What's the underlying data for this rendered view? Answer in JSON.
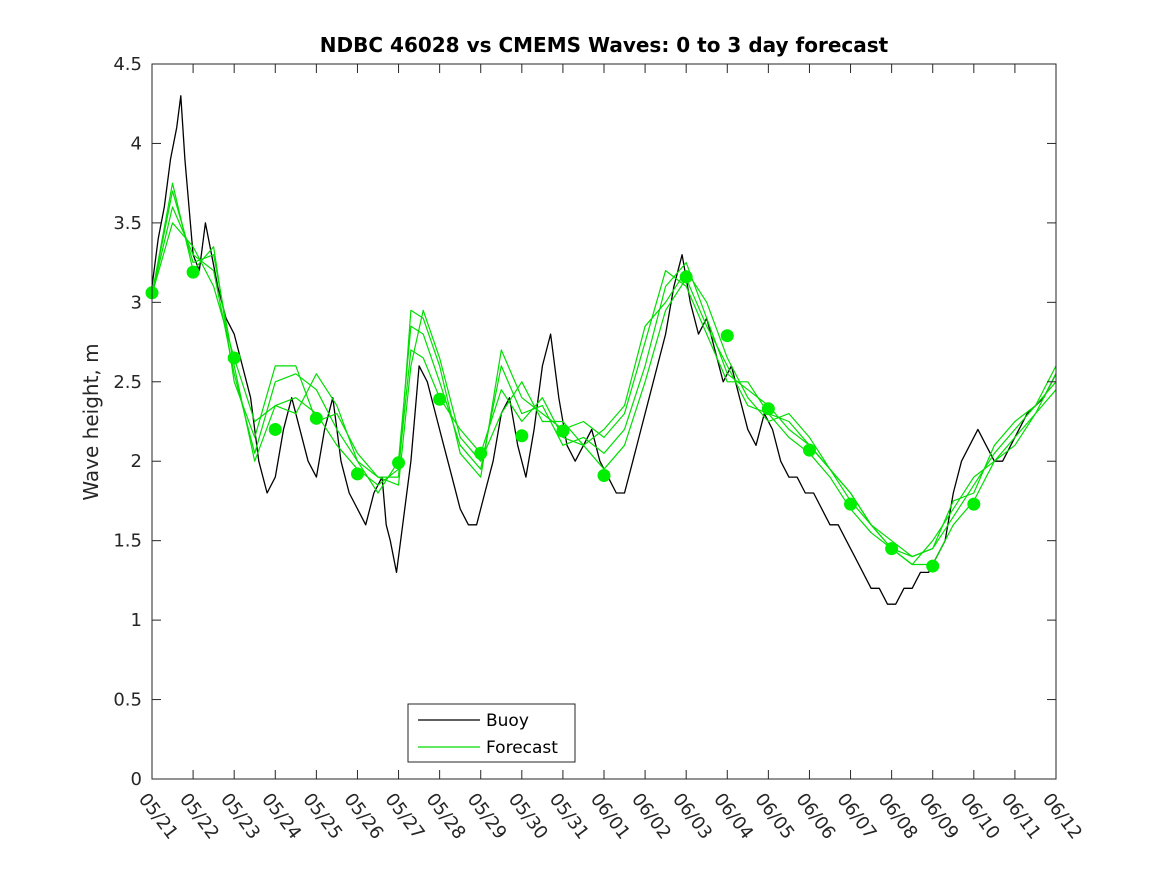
{
  "chart_data": {
    "type": "line",
    "title": "NDBC 46028 vs CMEMS Waves: 0 to 3 day forecast",
    "xlabel": "",
    "ylabel": "Wave height, m",
    "ylim": [
      0,
      4.5
    ],
    "yticks": [
      0,
      0.5,
      1,
      1.5,
      2,
      2.5,
      3,
      3.5,
      4,
      4.5
    ],
    "ytick_labels": [
      "0",
      "0.5",
      "1",
      "1.5",
      "2",
      "2.5",
      "3",
      "3.5",
      "4",
      "4.5"
    ],
    "x_axis_unit": "day",
    "xlim": [
      0,
      22
    ],
    "xticks": [
      0,
      1,
      2,
      3,
      4,
      5,
      6,
      7,
      8,
      9,
      10,
      11,
      12,
      13,
      14,
      15,
      16,
      17,
      18,
      19,
      20,
      21,
      22
    ],
    "xtick_labels": [
      "05/21",
      "05/22",
      "05/23",
      "05/24",
      "05/25",
      "05/26",
      "05/27",
      "05/28",
      "05/29",
      "05/30",
      "05/31",
      "06/01",
      "06/02",
      "06/03",
      "06/04",
      "06/05",
      "06/06",
      "06/07",
      "06/08",
      "06/09",
      "06/10",
      "06/11",
      "06/12"
    ],
    "grid": false,
    "legend": {
      "location": "bottom-center",
      "entries": [
        {
          "label": "Buoy",
          "color": "#000000"
        },
        {
          "label": "Forecast",
          "color": "#00dd00"
        }
      ]
    },
    "colors": {
      "buoy": "#000000",
      "forecast": "#00dd00",
      "marker": "#00ee00"
    },
    "series": [
      {
        "name": "Buoy",
        "style": "line",
        "x": [
          0,
          0.15,
          0.3,
          0.45,
          0.6,
          0.7,
          0.8,
          0.9,
          1.0,
          1.15,
          1.3,
          1.45,
          1.6,
          1.8,
          2.0,
          2.2,
          2.4,
          2.5,
          2.6,
          2.8,
          3.0,
          3.2,
          3.4,
          3.6,
          3.8,
          4.0,
          4.2,
          4.4,
          4.6,
          4.8,
          5.0,
          5.2,
          5.4,
          5.6,
          5.7,
          5.8,
          5.95,
          6.1,
          6.3,
          6.5,
          6.7,
          6.9,
          7.1,
          7.3,
          7.5,
          7.7,
          7.9,
          8.1,
          8.3,
          8.5,
          8.7,
          8.9,
          9.1,
          9.3,
          9.5,
          9.7,
          9.9,
          10.1,
          10.3,
          10.5,
          10.7,
          10.9,
          11.1,
          11.3,
          11.5,
          11.7,
          11.9,
          12.1,
          12.3,
          12.5,
          12.7,
          12.9,
          13.1,
          13.3,
          13.5,
          13.7,
          13.9,
          14.1,
          14.3,
          14.5,
          14.7,
          14.9,
          15.1,
          15.3,
          15.5,
          15.7,
          15.9,
          16.1,
          16.3,
          16.5,
          16.7,
          16.9,
          17.1,
          17.3,
          17.5,
          17.7,
          17.9,
          18.1,
          18.3,
          18.5,
          18.7,
          18.9,
          19.1,
          19.3,
          19.5,
          19.7,
          19.9,
          20.1,
          20.3,
          20.5,
          20.7,
          20.9,
          21.1,
          21.3,
          21.5,
          21.7,
          21.9,
          22.0
        ],
        "y": [
          3.1,
          3.4,
          3.6,
          3.9,
          4.1,
          4.3,
          3.9,
          3.6,
          3.3,
          3.2,
          3.5,
          3.3,
          3.1,
          2.9,
          2.8,
          2.6,
          2.4,
          2.2,
          2.0,
          1.8,
          1.9,
          2.2,
          2.4,
          2.2,
          2.0,
          1.9,
          2.2,
          2.4,
          2.0,
          1.8,
          1.7,
          1.6,
          1.8,
          1.9,
          1.6,
          1.5,
          1.3,
          1.6,
          2.0,
          2.6,
          2.5,
          2.3,
          2.1,
          1.9,
          1.7,
          1.6,
          1.6,
          1.8,
          2.0,
          2.3,
          2.4,
          2.1,
          1.9,
          2.2,
          2.6,
          2.8,
          2.4,
          2.1,
          2.0,
          2.1,
          2.2,
          2.0,
          1.9,
          1.8,
          1.8,
          2.0,
          2.2,
          2.4,
          2.6,
          2.8,
          3.1,
          3.3,
          3.0,
          2.8,
          2.9,
          2.7,
          2.5,
          2.6,
          2.4,
          2.2,
          2.1,
          2.3,
          2.2,
          2.0,
          1.9,
          1.9,
          1.8,
          1.8,
          1.7,
          1.6,
          1.6,
          1.5,
          1.4,
          1.3,
          1.2,
          1.2,
          1.1,
          1.1,
          1.2,
          1.2,
          1.3,
          1.3,
          1.4,
          1.5,
          1.8,
          2.0,
          2.1,
          2.2,
          2.1,
          2.0,
          2.0,
          2.1,
          2.2,
          2.3,
          2.35,
          2.4,
          2.5,
          2.55
        ]
      },
      {
        "name": "Forecast",
        "style": "line",
        "x": [
          0,
          0.5,
          1,
          1.5,
          2,
          2.5,
          3,
          3.5,
          4,
          4.5,
          5,
          5.5,
          6,
          6.3,
          6.6,
          7,
          7.5,
          8,
          8.5,
          9,
          9.5,
          10,
          10.5,
          11,
          11.5,
          12,
          12.5,
          13,
          13.5,
          14,
          14.5,
          15,
          15.5,
          16,
          16.5,
          17,
          17.5,
          18,
          18.5,
          19,
          19.5,
          20,
          20.5,
          21,
          21.5,
          22
        ],
        "y": [
          3.05,
          3.7,
          3.25,
          3.3,
          2.6,
          2.0,
          2.35,
          2.4,
          2.3,
          2.1,
          1.95,
          1.85,
          1.95,
          2.7,
          2.65,
          2.4,
          2.2,
          2.05,
          2.45,
          2.25,
          2.4,
          2.15,
          2.1,
          1.95,
          2.1,
          2.5,
          2.95,
          3.15,
          2.85,
          2.6,
          2.35,
          2.3,
          2.15,
          2.05,
          1.9,
          1.7,
          1.55,
          1.45,
          1.35,
          1.35,
          1.6,
          1.75,
          2.0,
          2.1,
          2.3,
          2.55
        ]
      },
      {
        "name": "",
        "style": "line",
        "x": [
          0,
          0.5,
          1,
          1.5,
          2,
          2.5,
          3,
          3.5,
          4,
          4.5,
          5,
          5.5,
          6,
          6.3,
          6.6,
          7,
          7.5,
          8,
          8.5,
          9,
          9.5,
          10,
          10.5,
          11,
          11.5,
          12,
          12.5,
          13,
          13.5,
          14,
          14.5,
          15,
          15.5,
          16,
          16.5,
          17,
          17.5,
          18,
          18.5,
          19,
          19.5,
          20,
          20.5,
          21,
          21.5,
          22
        ],
        "y": [
          3.05,
          3.6,
          3.3,
          3.2,
          2.55,
          2.05,
          2.5,
          2.55,
          2.45,
          2.2,
          2.0,
          1.8,
          2.0,
          2.85,
          2.8,
          2.5,
          2.1,
          1.95,
          2.6,
          2.3,
          2.35,
          2.1,
          2.15,
          2.05,
          2.2,
          2.6,
          3.1,
          3.25,
          2.9,
          2.55,
          2.45,
          2.35,
          2.2,
          2.1,
          1.95,
          1.75,
          1.6,
          1.45,
          1.4,
          1.45,
          1.65,
          1.85,
          2.05,
          2.2,
          2.35,
          2.5
        ]
      },
      {
        "name": "",
        "style": "line",
        "x": [
          0,
          0.5,
          1,
          1.5,
          2,
          2.5,
          3,
          3.5,
          4,
          4.5,
          5,
          5.5,
          6,
          6.3,
          6.6,
          7,
          7.5,
          8,
          8.5,
          9,
          9.5,
          10,
          10.5,
          11,
          11.5,
          12,
          12.5,
          13,
          13.5,
          14,
          14.5,
          15,
          15.5,
          16,
          16.5,
          17,
          17.5,
          18,
          18.5,
          19,
          19.5,
          20,
          20.5,
          21,
          21.5,
          22
        ],
        "y": [
          3.05,
          3.75,
          3.2,
          3.35,
          2.5,
          2.15,
          2.6,
          2.6,
          2.25,
          2.3,
          2.05,
          1.9,
          1.9,
          2.95,
          2.9,
          2.6,
          2.05,
          1.9,
          2.7,
          2.4,
          2.3,
          2.2,
          2.25,
          2.15,
          2.3,
          2.75,
          3.2,
          3.1,
          2.8,
          2.5,
          2.5,
          2.3,
          2.25,
          2.1,
          1.95,
          1.8,
          1.6,
          1.45,
          1.35,
          1.5,
          1.7,
          1.9,
          2.0,
          2.15,
          2.3,
          2.45
        ]
      },
      {
        "name": "",
        "style": "line",
        "x": [
          0,
          0.5,
          1,
          1.5,
          2,
          2.5,
          3,
          3.5,
          4,
          4.5,
          5,
          5.5,
          6,
          6.3,
          6.6,
          7,
          7.5,
          8,
          8.5,
          9,
          9.5,
          10,
          10.5,
          11,
          11.5,
          12,
          12.5,
          13,
          13.5,
          14,
          14.5,
          15,
          15.5,
          16,
          16.5,
          17,
          17.5,
          18,
          18.5,
          19,
          19.5,
          20,
          20.5,
          21,
          21.5,
          22
        ],
        "y": [
          3.05,
          3.5,
          3.35,
          3.1,
          2.65,
          2.25,
          2.35,
          2.3,
          2.55,
          2.35,
          2.0,
          1.9,
          1.85,
          2.6,
          2.95,
          2.65,
          2.15,
          2.0,
          2.3,
          2.5,
          2.25,
          2.25,
          2.1,
          2.2,
          2.35,
          2.85,
          3.0,
          3.2,
          3.0,
          2.65,
          2.4,
          2.25,
          2.3,
          2.15,
          1.95,
          1.8,
          1.6,
          1.5,
          1.4,
          1.45,
          1.75,
          1.8,
          2.1,
          2.25,
          2.35,
          2.6
        ]
      },
      {
        "name": "",
        "style": "markers",
        "x": [
          0,
          1,
          2,
          3,
          4,
          5,
          6,
          7,
          8,
          9,
          10,
          11,
          13,
          14,
          15,
          16,
          17,
          18,
          19,
          20
        ],
        "y": [
          3.06,
          3.19,
          2.65,
          2.2,
          2.27,
          1.92,
          1.99,
          2.39,
          2.05,
          2.16,
          2.19,
          1.91,
          3.16,
          2.79,
          2.33,
          2.07,
          1.73,
          1.45,
          1.34,
          1.73
        ]
      }
    ]
  }
}
